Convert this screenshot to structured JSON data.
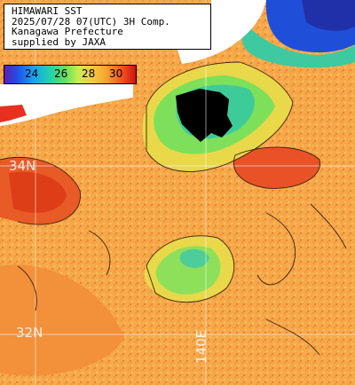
{
  "header": {
    "line1": "HIMAWARI SST",
    "line2": "2025/07/28 07(UTC) 3H Comp.",
    "line3": "Kanagawa Prefecture",
    "line4": "supplied by JAXA"
  },
  "scale": {
    "ticks": [
      "24",
      "26",
      "28",
      "30"
    ]
  },
  "labels": {
    "lat_34": "34N",
    "lat_32": "32N",
    "lon_140": "140E"
  },
  "colors": {
    "warm": "#f07a2e",
    "hot": "#e8481c",
    "mid": "#f4a640",
    "cool": "#8ee05a",
    "cooler": "#3ec9a0",
    "cold": "#1f4fd8",
    "no_data": "#000000",
    "land": "#ffffff",
    "grid": "#ffffff"
  }
}
